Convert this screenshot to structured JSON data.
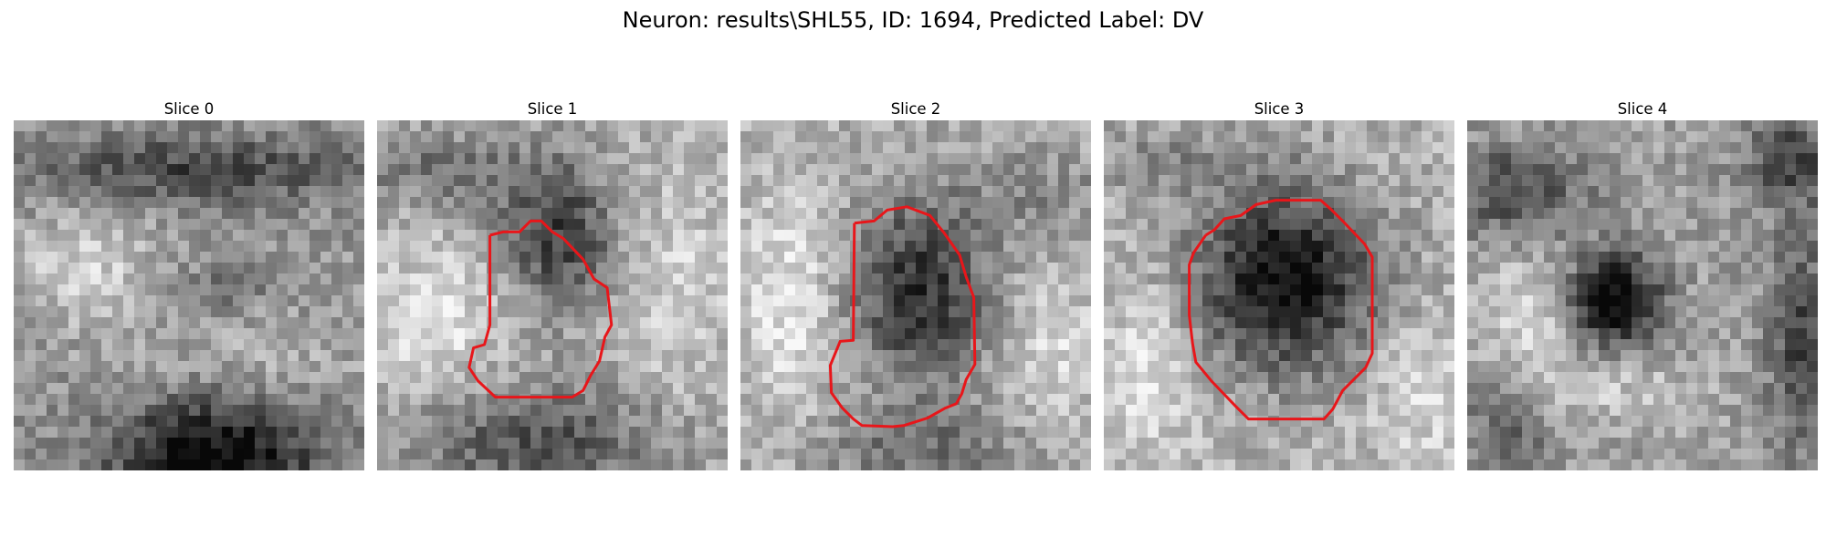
{
  "figure": {
    "title": "Neuron: results\\SHL55, ID: 1694, Predicted Label: DV"
  },
  "colors": {
    "background": "#ffffff",
    "contour": "#e8161a",
    "colormap": "gray"
  },
  "panels": [
    {
      "title": "Slice 0",
      "contour_shown": false
    },
    {
      "title": "Slice 1",
      "contour_shown": true
    },
    {
      "title": "Slice 2",
      "contour_shown": true
    },
    {
      "title": "Slice 3",
      "contour_shown": true
    },
    {
      "title": "Slice 4",
      "contour_shown": false
    }
  ]
}
